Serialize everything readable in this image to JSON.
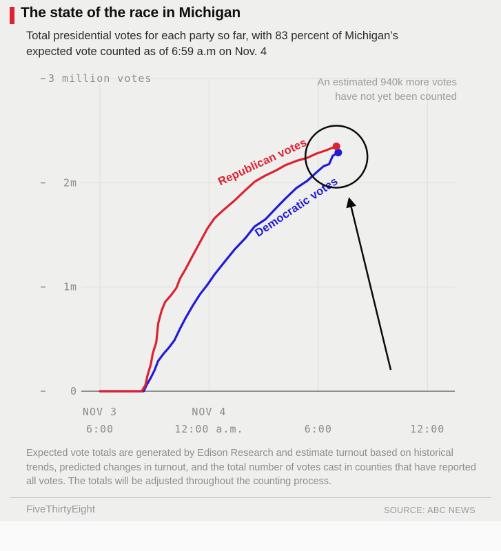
{
  "header": {
    "accent_color": "#dd2230",
    "title": "The state of the race in Michigan",
    "subtitle": "Total presidential votes for each party so far, with 83 percent of Michigan’s expected vote counted as of 6:59 a.m on Nov. 4"
  },
  "chart_data": {
    "type": "line",
    "title": "Total presidential votes for each party in Michigan over time",
    "annotation": "An estimated 940k more votes have not yet been counted",
    "annotation_lines": [
      "An estimated 940k more votes",
      "have not yet been counted"
    ],
    "x_unit": "hours since 6:00 p.m. Nov 3",
    "x_range": [
      0,
      19.4
    ],
    "x_ticks": [
      {
        "t": 0,
        "date": "NOV 3",
        "time": "6:00"
      },
      {
        "t": 6,
        "date": "NOV 4",
        "time": "12:00 a.m."
      },
      {
        "t": 12,
        "date": "",
        "time": "6:00"
      },
      {
        "t": 18,
        "date": "",
        "time": "12:00"
      }
    ],
    "y_unit": "million votes",
    "y_range": [
      0,
      3.0
    ],
    "y_ticks": [
      {
        "v": 0,
        "label": "0"
      },
      {
        "v": 1,
        "label": "1m"
      },
      {
        "v": 2,
        "label": "2m"
      },
      {
        "v": 3,
        "label": "3 million votes"
      }
    ],
    "grid": true,
    "legend_position": "inline-labels",
    "series": [
      {
        "name": "Republican votes",
        "color": "#dd2230",
        "end_value_millions": 2.35,
        "points": [
          [
            0,
            0
          ],
          [
            2.3,
            0
          ],
          [
            2.5,
            0.06
          ],
          [
            2.6,
            0.14
          ],
          [
            2.8,
            0.26
          ],
          [
            2.9,
            0.36
          ],
          [
            3.1,
            0.47
          ],
          [
            3.2,
            0.65
          ],
          [
            3.4,
            0.78
          ],
          [
            3.6,
            0.86
          ],
          [
            3.9,
            0.92
          ],
          [
            4.2,
            0.99
          ],
          [
            4.4,
            1.08
          ],
          [
            4.7,
            1.17
          ],
          [
            5.1,
            1.3
          ],
          [
            5.5,
            1.43
          ],
          [
            5.9,
            1.56
          ],
          [
            6.3,
            1.66
          ],
          [
            6.8,
            1.74
          ],
          [
            7.4,
            1.83
          ],
          [
            8.0,
            1.93
          ],
          [
            8.5,
            2.01
          ],
          [
            9.1,
            2.07
          ],
          [
            9.7,
            2.12
          ],
          [
            10.2,
            2.17
          ],
          [
            10.8,
            2.21
          ],
          [
            11.4,
            2.24
          ],
          [
            11.9,
            2.28
          ],
          [
            12.4,
            2.31
          ],
          [
            13.0,
            2.35
          ]
        ]
      },
      {
        "name": "Democratic votes",
        "color": "#201cd5",
        "end_value_millions": 2.29,
        "points": [
          [
            0,
            0
          ],
          [
            2.4,
            0
          ],
          [
            2.6,
            0.07
          ],
          [
            2.8,
            0.13
          ],
          [
            3.0,
            0.2
          ],
          [
            3.2,
            0.29
          ],
          [
            3.5,
            0.36
          ],
          [
            3.8,
            0.42
          ],
          [
            4.1,
            0.49
          ],
          [
            4.4,
            0.6
          ],
          [
            4.7,
            0.7
          ],
          [
            5.1,
            0.82
          ],
          [
            5.5,
            0.93
          ],
          [
            5.9,
            1.02
          ],
          [
            6.3,
            1.12
          ],
          [
            6.8,
            1.23
          ],
          [
            7.4,
            1.36
          ],
          [
            8.0,
            1.47
          ],
          [
            8.5,
            1.58
          ],
          [
            9.1,
            1.65
          ],
          [
            9.7,
            1.76
          ],
          [
            10.2,
            1.85
          ],
          [
            10.8,
            1.95
          ],
          [
            11.4,
            2.02
          ],
          [
            11.9,
            2.1
          ],
          [
            12.3,
            2.16
          ],
          [
            12.6,
            2.18
          ],
          [
            12.8,
            2.26
          ],
          [
            13.1,
            2.29
          ]
        ]
      }
    ]
  },
  "footnote": "Expected vote totals are generated by Edison Research and estimate turnout based on historical trends, predicted changes in turnout, and the total number of votes cast in counties that have reported all votes. The totals will be adjusted throughout the counting process.",
  "footer": {
    "brand": "FiveThirtyEight",
    "source": "SOURCE: ABC NEWS"
  }
}
